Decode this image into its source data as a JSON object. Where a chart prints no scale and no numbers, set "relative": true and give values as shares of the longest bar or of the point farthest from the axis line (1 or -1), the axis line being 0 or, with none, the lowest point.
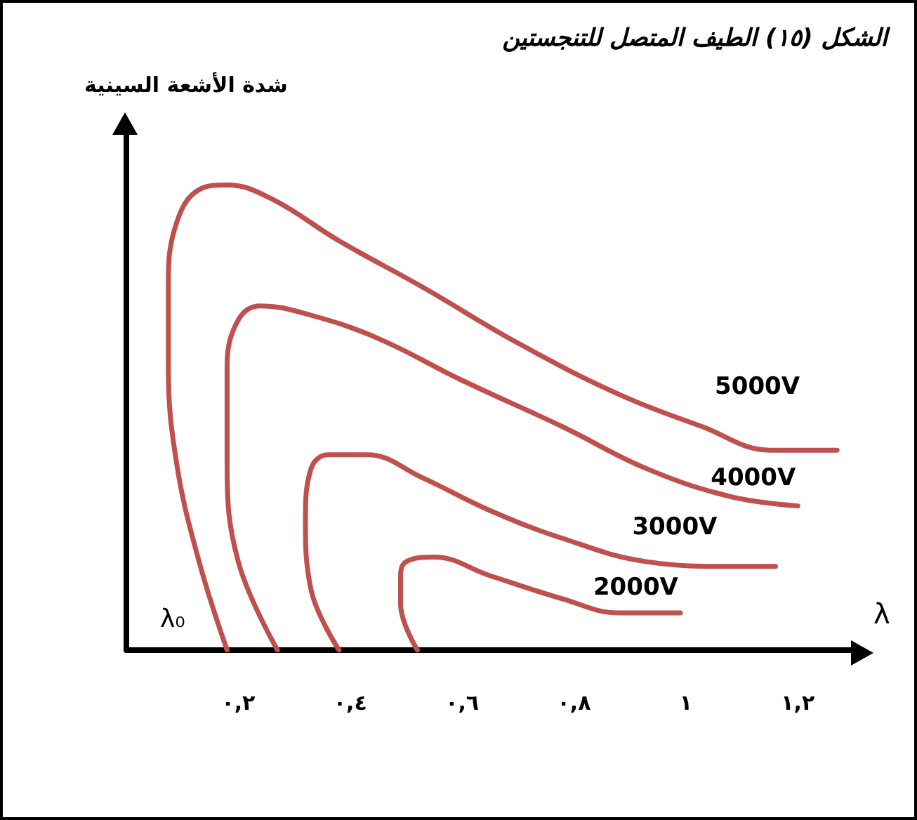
{
  "chart_data": {
    "type": "line",
    "title": "الشكل (١٥) الطيف المتصل للتنجستين",
    "xlabel": "λ",
    "ylabel": "شدة الأشعة السينية",
    "annotations": [
      "λ₀"
    ],
    "relative": true,
    "tick_labels": "x",
    "grid": false,
    "legend": false,
    "marker": "none",
    "line_style": "solid",
    "xlim": [
      0,
      1.3
    ],
    "xticks": [
      {
        "value": 0.2,
        "label": "٠,٢"
      },
      {
        "value": 0.4,
        "label": "٠,٤"
      },
      {
        "value": 0.6,
        "label": "٠,٦"
      },
      {
        "value": 0.8,
        "label": "٠,٨"
      },
      {
        "value": 1,
        "label": "١"
      },
      {
        "value": 1.2,
        "label": "١,٢"
      }
    ],
    "series": [
      {
        "name": "5000V",
        "color": "#c0504d",
        "x": [
          0.18,
          0.13,
          0.09,
          0.075,
          0.075,
          0.09,
          0.13,
          0.18,
          0.26,
          0.38,
          0.53,
          0.7,
          0.88,
          1.03,
          1.15,
          1.27
        ],
        "values": [
          0,
          0.19,
          0.4,
          0.61,
          0.79,
          0.92,
          0.99,
          1,
          0.97,
          0.88,
          0.78,
          0.66,
          0.55,
          0.48,
          0.43,
          0.43
        ]
      },
      {
        "name": "4000V",
        "color": "#c0504d",
        "x": [
          0.27,
          0.2,
          0.18,
          0.18,
          0.2,
          0.24,
          0.33,
          0.45,
          0.6,
          0.78,
          0.93,
          1.08,
          1.2
        ],
        "values": [
          0,
          0.19,
          0.4,
          0.61,
          0.71,
          0.74,
          0.72,
          0.67,
          0.58,
          0.48,
          0.39,
          0.33,
          0.31
        ]
      },
      {
        "name": "3000V",
        "color": "#c0504d",
        "x": [
          0.38,
          0.33,
          0.32,
          0.33,
          0.36,
          0.43,
          0.53,
          0.65,
          0.78,
          0.93,
          1.08,
          1.16
        ],
        "values": [
          0,
          0.13,
          0.28,
          0.39,
          0.42,
          0.42,
          0.37,
          0.3,
          0.24,
          0.19,
          0.18,
          0.18
        ]
      },
      {
        "name": "2000V",
        "color": "#c0504d",
        "x": [
          0.52,
          0.49,
          0.49,
          0.5,
          0.55,
          0.65,
          0.78,
          0.88,
          0.99
        ],
        "values": [
          0,
          0.1,
          0.16,
          0.19,
          0.2,
          0.16,
          0.11,
          0.08,
          0.08
        ]
      }
    ]
  }
}
